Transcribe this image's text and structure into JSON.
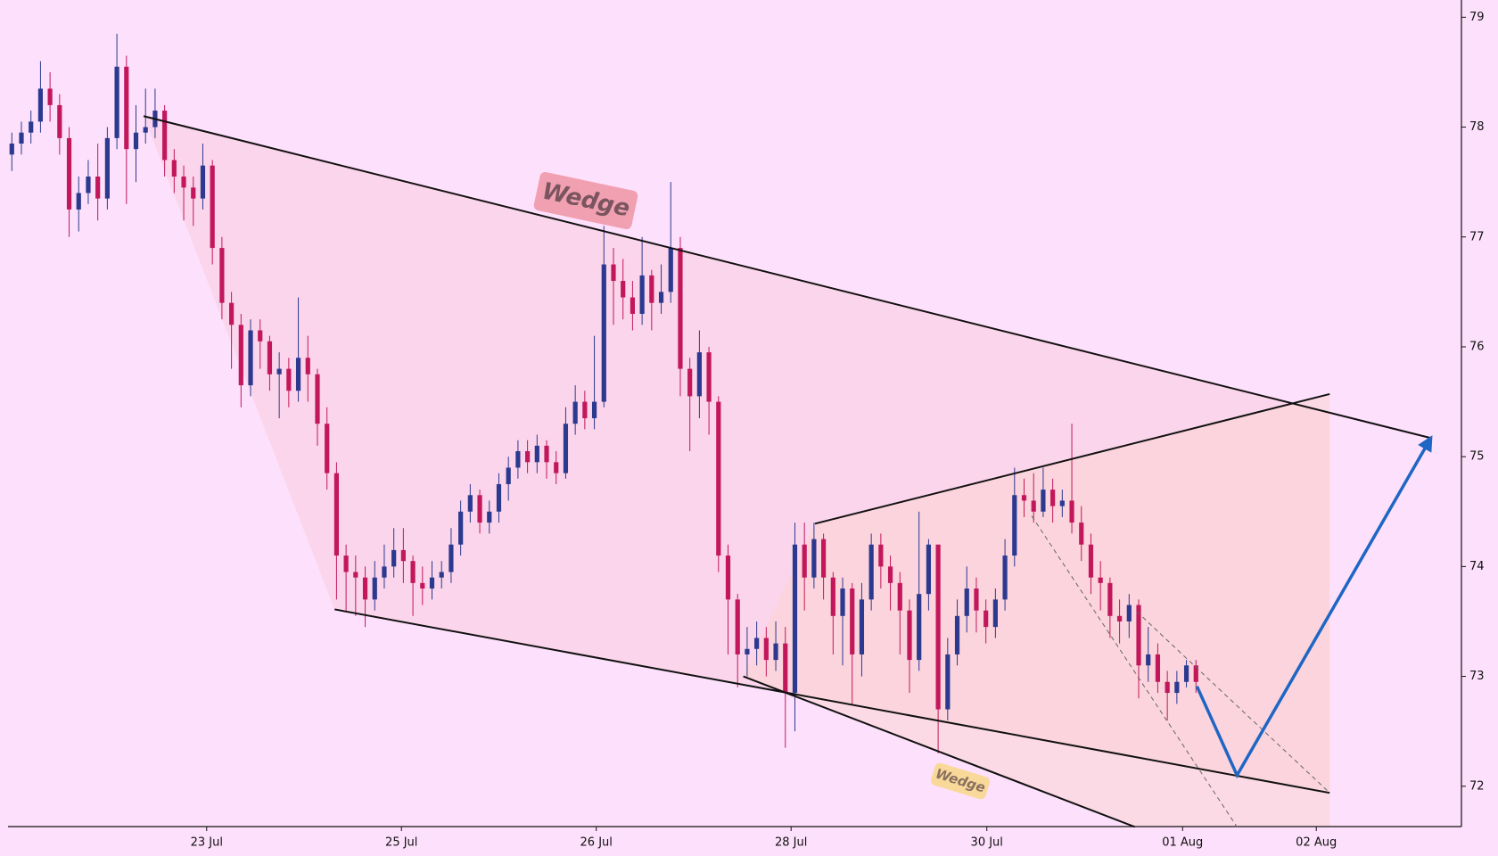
{
  "chart_data": {
    "type": "candlestick",
    "xlim": [
      -0.4,
      151.8
    ],
    "ylim": [
      71.633,
      79.157
    ],
    "yticks": [
      72,
      73,
      74,
      75,
      76,
      77,
      78,
      79
    ],
    "xticks": [
      {
        "value": 20.4,
        "label": "23 Jul"
      },
      {
        "value": 40.8,
        "label": "25 Jul"
      },
      {
        "value": 61.2,
        "label": "26 Jul"
      },
      {
        "value": 81.6,
        "label": "28 Jul"
      },
      {
        "value": 102.1,
        "label": "30 Jul"
      },
      {
        "value": 122.6,
        "label": "01 Aug"
      },
      {
        "value": 136.6,
        "label": "02 Aug"
      }
    ],
    "up_color": "#2b3a8f",
    "down_color": "#c2185b",
    "open": [
      77.75,
      77.85,
      77.95,
      78.05,
      78.35,
      78.2,
      77.9,
      77.25,
      77.4,
      77.55,
      77.35,
      77.9,
      78.55,
      77.8,
      77.95,
      78.0,
      78.15,
      77.7,
      77.55,
      77.45,
      77.35,
      77.65,
      76.9,
      76.4,
      76.2,
      75.65,
      76.15,
      76.05,
      75.75,
      75.8,
      75.6,
      75.9,
      75.75,
      75.3,
      74.85,
      74.1,
      73.95,
      73.9,
      73.7,
      73.9,
      74.0,
      74.15,
      74.05,
      73.85,
      73.8,
      73.9,
      73.95,
      74.2,
      74.5,
      74.65,
      74.4,
      74.5,
      74.75,
      74.9,
      75.05,
      74.95,
      75.1,
      74.95,
      74.85,
      75.3,
      75.5,
      75.35,
      75.5,
      76.75,
      76.6,
      76.45,
      76.3,
      76.65,
      76.4,
      76.5,
      76.9,
      75.8,
      75.55,
      75.95,
      75.5,
      74.1,
      73.7,
      73.2,
      73.25,
      73.35,
      73.15,
      73.3,
      72.85,
      74.2,
      73.9,
      74.25,
      73.9,
      73.55,
      73.8,
      73.2,
      73.7,
      74.2,
      74.0,
      73.85,
      73.6,
      73.15,
      73.75,
      74.2,
      72.7,
      73.2,
      73.55,
      73.8,
      73.6,
      73.45,
      73.7,
      74.1,
      74.65,
      74.6,
      74.5,
      74.7,
      74.55,
      74.6,
      74.4,
      74.2,
      73.9,
      73.85,
      73.55,
      73.5,
      73.65,
      73.1,
      73.2,
      72.95,
      72.85,
      72.95,
      73.1
    ],
    "high": [
      77.95,
      78.05,
      78.15,
      78.6,
      78.5,
      78.3,
      78.0,
      77.55,
      77.7,
      77.85,
      78.0,
      78.85,
      78.65,
      78.2,
      78.35,
      78.35,
      78.2,
      77.8,
      77.65,
      77.55,
      77.85,
      77.7,
      77.0,
      76.5,
      76.3,
      76.25,
      76.25,
      76.1,
      75.95,
      75.9,
      76.45,
      76.1,
      75.8,
      75.45,
      74.95,
      74.2,
      74.1,
      74.0,
      74.05,
      74.2,
      74.35,
      74.35,
      74.1,
      74.0,
      74.05,
      74.05,
      74.35,
      74.6,
      74.75,
      74.7,
      74.6,
      74.85,
      75.0,
      75.15,
      75.15,
      75.2,
      75.15,
      75.05,
      75.45,
      75.65,
      75.6,
      76.1,
      77.1,
      76.9,
      76.8,
      76.6,
      77.0,
      76.7,
      76.75,
      77.5,
      77.0,
      75.9,
      76.15,
      76.0,
      75.55,
      74.2,
      73.75,
      73.45,
      73.5,
      73.45,
      73.5,
      73.45,
      74.4,
      74.4,
      74.4,
      74.3,
      73.95,
      73.9,
      73.85,
      73.85,
      74.3,
      74.3,
      74.1,
      73.95,
      73.7,
      74.5,
      74.25,
      74.2,
      73.35,
      73.7,
      74.0,
      73.9,
      73.7,
      73.8,
      74.25,
      74.9,
      74.8,
      74.85,
      74.9,
      74.8,
      74.7,
      75.3,
      74.55,
      74.3,
      74.05,
      73.9,
      73.7,
      73.75,
      73.7,
      73.45,
      73.3,
      73.05,
      73.05,
      73.15,
      73.15
    ],
    "low": [
      77.6,
      77.75,
      77.85,
      77.95,
      78.05,
      77.75,
      77.0,
      77.05,
      77.3,
      77.15,
      77.25,
      77.8,
      77.3,
      77.5,
      77.85,
      77.9,
      77.55,
      77.4,
      77.15,
      77.1,
      77.25,
      76.75,
      76.25,
      75.8,
      75.45,
      75.55,
      75.8,
      75.6,
      75.35,
      75.45,
      75.5,
      75.5,
      75.1,
      74.7,
      73.7,
      73.6,
      73.55,
      73.45,
      73.6,
      73.8,
      73.9,
      73.85,
      73.55,
      73.65,
      73.7,
      73.8,
      73.85,
      74.1,
      74.4,
      74.3,
      74.3,
      74.4,
      74.6,
      74.8,
      74.85,
      74.85,
      74.8,
      74.75,
      74.8,
      75.2,
      75.25,
      75.25,
      75.45,
      76.2,
      76.25,
      76.15,
      76.2,
      76.15,
      76.3,
      76.4,
      75.55,
      75.05,
      75.35,
      75.2,
      73.95,
      73.2,
      72.9,
      73.0,
      73.1,
      73.0,
      73.05,
      72.35,
      72.5,
      73.6,
      73.8,
      73.7,
      73.2,
      73.1,
      72.75,
      73.0,
      73.6,
      73.8,
      73.6,
      73.2,
      72.85,
      73.05,
      73.6,
      72.3,
      72.6,
      73.1,
      73.4,
      73.4,
      73.3,
      73.35,
      73.6,
      74.0,
      74.45,
      74.4,
      74.45,
      74.4,
      74.45,
      74.3,
      74.05,
      73.75,
      73.6,
      73.35,
      73.3,
      73.35,
      72.8,
      72.95,
      72.85,
      72.6,
      72.75,
      72.9,
      72.85
    ],
    "close": [
      77.85,
      77.95,
      78.05,
      78.35,
      78.2,
      77.9,
      77.25,
      77.4,
      77.55,
      77.35,
      77.9,
      78.55,
      77.8,
      77.95,
      78.0,
      78.15,
      77.7,
      77.55,
      77.45,
      77.35,
      77.65,
      76.9,
      76.4,
      76.2,
      75.65,
      76.15,
      76.05,
      75.75,
      75.8,
      75.6,
      75.9,
      75.75,
      75.3,
      74.85,
      74.1,
      73.95,
      73.9,
      73.7,
      73.9,
      74.0,
      74.15,
      74.05,
      73.85,
      73.8,
      73.9,
      73.95,
      74.2,
      74.5,
      74.65,
      74.4,
      74.5,
      74.75,
      74.9,
      75.05,
      74.95,
      75.1,
      74.95,
      74.85,
      75.3,
      75.5,
      75.35,
      75.5,
      76.75,
      76.6,
      76.45,
      76.3,
      76.65,
      76.4,
      76.5,
      76.9,
      75.8,
      75.55,
      75.95,
      75.5,
      74.1,
      73.7,
      73.2,
      73.25,
      73.35,
      73.15,
      73.3,
      72.85,
      74.2,
      73.9,
      74.25,
      73.9,
      73.55,
      73.8,
      73.2,
      73.7,
      74.2,
      74.0,
      73.85,
      73.6,
      73.15,
      73.75,
      74.2,
      72.7,
      73.2,
      73.55,
      73.8,
      73.6,
      73.45,
      73.7,
      74.1,
      74.65,
      74.6,
      74.5,
      74.7,
      74.55,
      74.6,
      74.4,
      74.2,
      73.9,
      73.85,
      73.55,
      73.5,
      73.65,
      73.1,
      73.2,
      72.95,
      72.85,
      72.95,
      73.1,
      72.95
    ],
    "lines": [
      {
        "x": [
          13.8,
          148.6
        ],
        "y": [
          78.1,
          75.17
        ],
        "color": "#111111"
      },
      {
        "x": [
          33.8,
          138
        ],
        "y": [
          73.61,
          71.94
        ],
        "color": "#111111"
      },
      {
        "x": [
          84.1,
          138
        ],
        "y": [
          74.39,
          75.57
        ],
        "color": "#111111"
      },
      {
        "x": [
          76.6,
          117.6
        ],
        "y": [
          73.0,
          71.63
        ],
        "color": "#111111"
      },
      {
        "x": [
          106.8,
          128.3
        ],
        "y": [
          74.46,
          71.63
        ],
        "color": "#666666",
        "dashed": true
      },
      {
        "x": [
          117.8,
          138
        ],
        "y": [
          73.59,
          71.94
        ],
        "color": "#666666",
        "dashed": true
      },
      {
        "x": [
          124.1,
          128.3,
          148.6
        ],
        "y": [
          72.91,
          72.1,
          75.17
        ],
        "color": "#1e66c4",
        "arrow": true
      }
    ],
    "labels": [
      "Wedge",
      "Wedge"
    ]
  }
}
